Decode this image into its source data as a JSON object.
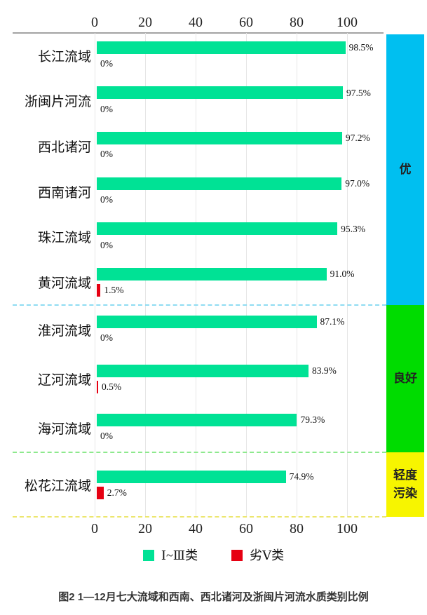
{
  "colors": {
    "bar_good": "#00E295",
    "bar_bad": "#E60012",
    "gridline": "#e6e6e6",
    "axis_line": "#a3a3a3"
  },
  "chart_data": {
    "type": "bar",
    "orientation": "horizontal",
    "title": "图2  1—12月七大流域和西南、西北诸河及浙闽片河流水质类别比例",
    "x_axis": {
      "ticks": [
        0,
        20,
        40,
        60,
        80,
        100
      ],
      "max": 115,
      "grid": true,
      "tick_position": "top-and-bottom"
    },
    "legend": [
      {
        "label": "Ⅰ~Ⅲ类",
        "color": "#00E295"
      },
      {
        "label": "劣Ⅴ类",
        "color": "#E60012"
      }
    ],
    "series_names": [
      "Ⅰ~Ⅲ类",
      "劣Ⅴ类"
    ],
    "groups": [
      {
        "band": "优",
        "band_color": "#00BFF0",
        "separator_color": "#8fdcf2",
        "rows": [
          {
            "category": "长江流域",
            "good": 98.5,
            "good_label": "98.5%",
            "bad": 0,
            "bad_label": "0%"
          },
          {
            "category": "浙闽片河流",
            "good": 97.5,
            "good_label": "97.5%",
            "bad": 0,
            "bad_label": "0%"
          },
          {
            "category": "西北诸河",
            "good": 97.2,
            "good_label": "97.2%",
            "bad": 0,
            "bad_label": "0%"
          },
          {
            "category": "西南诸河",
            "good": 97.0,
            "good_label": "97.0%",
            "bad": 0,
            "bad_label": "0%"
          },
          {
            "category": "珠江流域",
            "good": 95.3,
            "good_label": "95.3%",
            "bad": 0,
            "bad_label": "0%"
          },
          {
            "category": "黄河流域",
            "good": 91.0,
            "good_label": "91.0%",
            "bad": 1.5,
            "bad_label": "1.5%"
          }
        ]
      },
      {
        "band": "良好",
        "band_color": "#00DC00",
        "separator_color": "#8de98d",
        "rows": [
          {
            "category": "淮河流域",
            "good": 87.1,
            "good_label": "87.1%",
            "bad": 0,
            "bad_label": "0%"
          },
          {
            "category": "辽河流域",
            "good": 83.9,
            "good_label": "83.9%",
            "bad": 0.5,
            "bad_label": "0.5%"
          },
          {
            "category": "海河流域",
            "good": 79.3,
            "good_label": "79.3%",
            "bad": 0,
            "bad_label": "0%"
          }
        ]
      },
      {
        "band": "轻度污染",
        "band_color": "#F7F500",
        "separator_color": "#ece66e",
        "rows": [
          {
            "category": "松花江流域",
            "good": 74.9,
            "good_label": "74.9%",
            "bad": 2.7,
            "bad_label": "2.7%"
          }
        ]
      }
    ]
  }
}
